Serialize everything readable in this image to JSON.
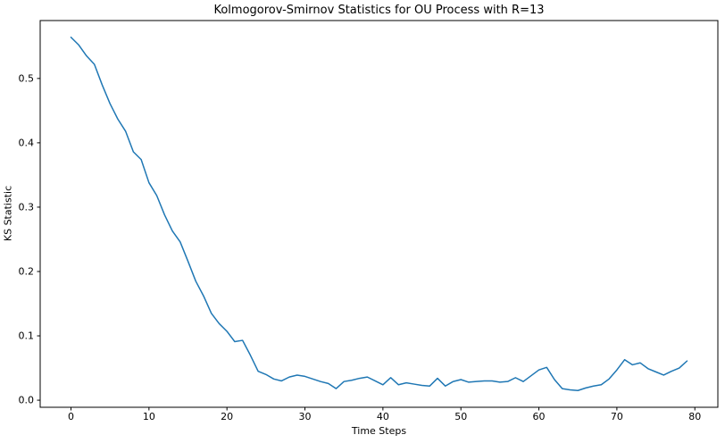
{
  "window": {
    "background": "#ffffff"
  },
  "chart_data": {
    "type": "line",
    "title": "Kolmogorov-Smirnov Statistics for OU Process with R=13",
    "xlabel": "Time Steps",
    "ylabel": "KS Statistic",
    "legend_position": "none",
    "grid": false,
    "line_color": "#1f77b4",
    "axis_color": "#000000",
    "xlim": [
      -3.95,
      82.95
    ],
    "ylim": [
      -0.011,
      0.59
    ],
    "xticks": [
      0,
      10,
      20,
      30,
      40,
      50,
      60,
      70,
      80
    ],
    "xtick_labels": [
      "0",
      "10",
      "20",
      "30",
      "40",
      "50",
      "60",
      "70",
      "80"
    ],
    "yticks": [
      0.0,
      0.1,
      0.2,
      0.3,
      0.4,
      0.5
    ],
    "ytick_labels": [
      "0.0",
      "0.1",
      "0.2",
      "0.3",
      "0.4",
      "0.5"
    ],
    "x": [
      0,
      1,
      2,
      3,
      4,
      5,
      6,
      7,
      8,
      9,
      10,
      11,
      12,
      13,
      14,
      15,
      16,
      17,
      18,
      19,
      20,
      21,
      22,
      23,
      24,
      25,
      26,
      27,
      28,
      29,
      30,
      31,
      32,
      33,
      34,
      35,
      36,
      37,
      38,
      39,
      40,
      41,
      42,
      43,
      44,
      45,
      46,
      47,
      48,
      49,
      50,
      51,
      52,
      53,
      54,
      55,
      56,
      57,
      58,
      59,
      60,
      61,
      62,
      63,
      64,
      65,
      66,
      67,
      68,
      69,
      70,
      71,
      72,
      73,
      74,
      75,
      76,
      77,
      78,
      79
    ],
    "values": [
      0.564,
      0.552,
      0.535,
      0.522,
      0.49,
      0.461,
      0.437,
      0.418,
      0.386,
      0.374,
      0.338,
      0.318,
      0.288,
      0.263,
      0.246,
      0.216,
      0.185,
      0.162,
      0.135,
      0.119,
      0.107,
      0.091,
      0.093,
      0.07,
      0.045,
      0.04,
      0.033,
      0.03,
      0.036,
      0.039,
      0.037,
      0.033,
      0.029,
      0.026,
      0.018,
      0.029,
      0.031,
      0.034,
      0.036,
      0.03,
      0.024,
      0.035,
      0.024,
      0.027,
      0.025,
      0.023,
      0.022,
      0.034,
      0.022,
      0.029,
      0.032,
      0.028,
      0.029,
      0.03,
      0.03,
      0.028,
      0.029,
      0.035,
      0.029,
      0.038,
      0.047,
      0.051,
      0.032,
      0.018,
      0.016,
      0.015,
      0.019,
      0.022,
      0.024,
      0.033,
      0.047,
      0.063,
      0.055,
      0.058,
      0.049,
      0.044,
      0.039,
      0.045,
      0.05,
      0.061
    ]
  }
}
